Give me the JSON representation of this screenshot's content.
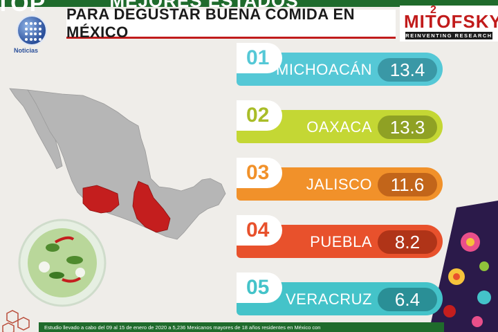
{
  "header": {
    "tag": "TOP",
    "title_top": "MEJORES ESTADOS",
    "title": "PARA DEGUSTAR BUENA COMIDA EN MÉXICO"
  },
  "logo": {
    "text": "Noticias",
    "icon": "globe-logo-icon"
  },
  "brand": {
    "year": "2",
    "name": "MITOFSKY",
    "tagline": "REINVENTING RESEARCH"
  },
  "ranking": [
    {
      "rank": "01",
      "state": "MICHOACÁN",
      "score": "13.4",
      "color": "#55c8d6",
      "pill": "#3a98a6",
      "num_color": "#55c8d6"
    },
    {
      "rank": "02",
      "state": "OAXACA",
      "score": "13.3",
      "color": "#c4d734",
      "pill": "#8fa124",
      "num_color": "#a9bd28"
    },
    {
      "rank": "03",
      "state": "JALISCO",
      "score": "11.6",
      "color": "#f1912a",
      "pill": "#c2651a",
      "num_color": "#f1912a"
    },
    {
      "rank": "04",
      "state": "PUEBLA",
      "score": "8.2",
      "color": "#e8512c",
      "pill": "#b03418",
      "num_color": "#e8512c"
    },
    {
      "rank": "05",
      "state": "VERACRUZ",
      "score": "6.4",
      "color": "#44c3c9",
      "pill": "#2a8f96",
      "num_color": "#44c3c9"
    }
  ],
  "map": {
    "base_color": "#b6b6b6",
    "highlight_color": "#c41e1e"
  },
  "footer": {
    "text": "Estudio llevado a cabo del 09 al 15 de enero de 2020 a 5,236 Mexicanos mayores de 18 años residentes en México con"
  }
}
